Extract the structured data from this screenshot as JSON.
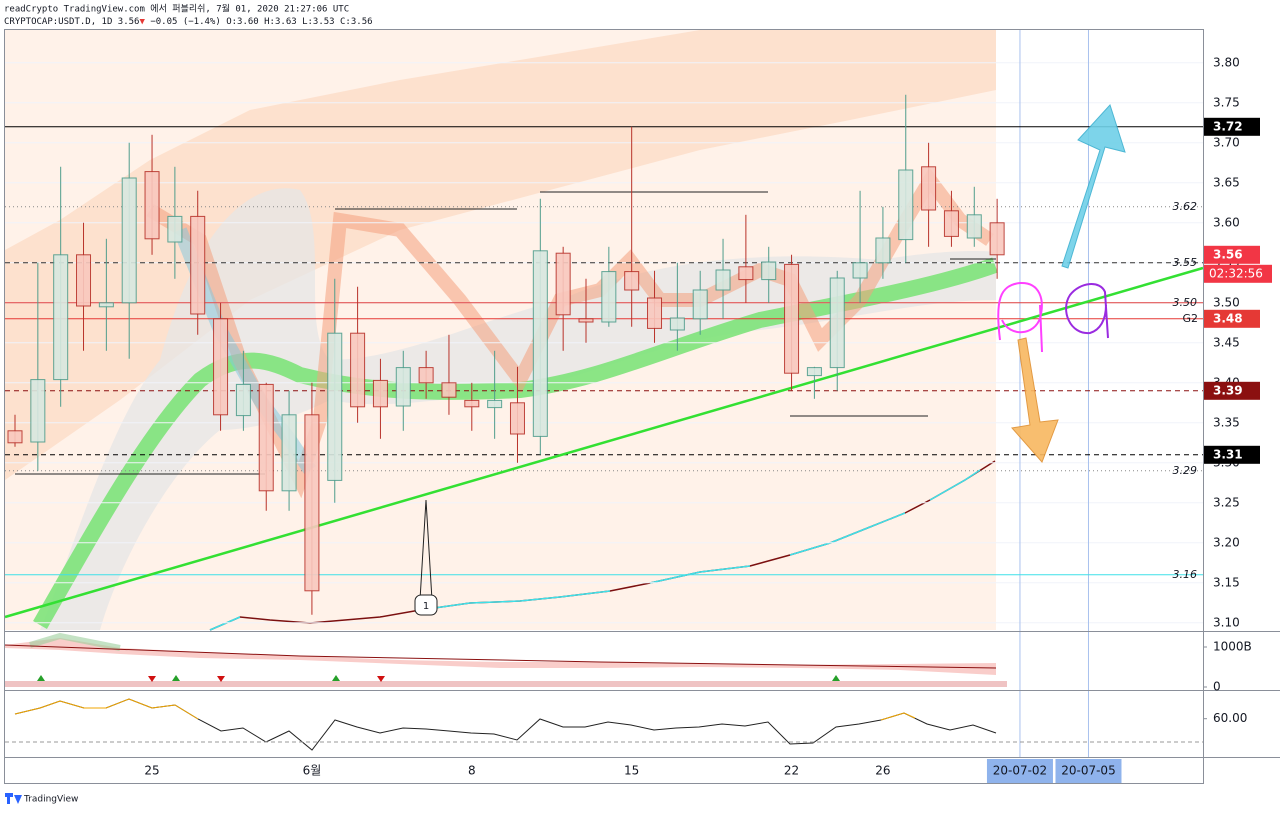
{
  "header": {
    "attribution": "readCrypto TradingView.com 에서 퍼블리쉬, 7월 01, 2020 21:27:06 UTC",
    "symbol": "CRYPTOCAP:USDT.D, 1D",
    "last": "3.56",
    "arrow": "▼",
    "change": "−0.05 (−1.4%)",
    "o": "O:3.60",
    "h": "H:3.63",
    "l": "L:3.53",
    "c": "C:3.56"
  },
  "chart_data": {
    "type": "candlestick",
    "categories": [
      null,
      null,
      null,
      null,
      null,
      null,
      "25",
      null,
      null,
      null,
      null,
      null,
      null,
      "6월",
      null,
      null,
      null,
      null,
      null,
      null,
      "8",
      null,
      null,
      null,
      null,
      null,
      null,
      "15",
      null,
      null,
      null,
      null,
      null,
      null,
      "22",
      null,
      null,
      null,
      "26",
      null,
      null,
      null,
      null,
      null,
      "20-07-02",
      null,
      null,
      "20-07-05"
    ],
    "highlight_indices": [
      44,
      47
    ],
    "open": [
      3.34,
      3.326,
      3.404,
      3.56,
      3.495,
      3.5,
      3.664,
      3.576,
      3.608,
      3.48,
      3.359,
      3.398,
      3.265,
      3.36,
      3.278,
      3.462,
      3.403,
      3.371,
      3.419,
      3.4,
      3.378,
      3.369,
      3.375,
      3.333,
      3.562,
      3.48,
      3.476,
      3.539,
      3.506,
      3.466,
      3.48,
      3.516,
      3.545,
      3.529,
      3.548,
      3.409,
      3.419,
      3.531,
      3.55,
      3.579,
      3.67,
      3.615,
      3.581,
      3.6,
      null,
      null,
      null,
      null
    ],
    "high": [
      3.36,
      3.55,
      3.67,
      3.6,
      3.58,
      3.7,
      3.71,
      3.67,
      3.64,
      3.5,
      3.44,
      3.4,
      3.39,
      3.4,
      3.53,
      3.52,
      3.43,
      3.44,
      3.44,
      3.46,
      3.4,
      3.44,
      3.42,
      3.63,
      3.57,
      3.53,
      3.57,
      3.72,
      3.54,
      3.55,
      3.54,
      3.58,
      3.61,
      3.57,
      3.56,
      3.42,
      3.54,
      3.64,
      3.62,
      3.76,
      3.7,
      3.64,
      3.645,
      3.63,
      null,
      null,
      null,
      null
    ],
    "low": [
      3.32,
      3.29,
      3.37,
      3.44,
      3.44,
      3.43,
      3.56,
      3.53,
      3.46,
      3.34,
      3.34,
      3.24,
      3.24,
      3.11,
      3.25,
      3.35,
      3.33,
      3.34,
      3.38,
      3.36,
      3.34,
      3.33,
      3.3,
      3.31,
      3.44,
      3.45,
      3.47,
      3.47,
      3.45,
      3.44,
      3.46,
      3.48,
      3.5,
      3.5,
      3.39,
      3.38,
      3.39,
      3.5,
      3.53,
      3.55,
      3.57,
      3.57,
      3.57,
      3.53,
      null,
      null,
      null,
      null
    ],
    "close": [
      3.325,
      3.404,
      3.56,
      3.496,
      3.5,
      3.656,
      3.58,
      3.608,
      3.486,
      3.36,
      3.398,
      3.265,
      3.36,
      3.14,
      3.462,
      3.37,
      3.37,
      3.419,
      3.4,
      3.382,
      3.37,
      3.378,
      3.336,
      3.565,
      3.485,
      3.476,
      3.539,
      3.516,
      3.468,
      3.481,
      3.516,
      3.541,
      3.529,
      3.551,
      3.412,
      3.419,
      3.531,
      3.55,
      3.581,
      3.666,
      3.616,
      3.583,
      3.61,
      3.56,
      null,
      null,
      null,
      null
    ],
    "up_color": "#4f9d8c",
    "down_color": "#b8322a",
    "ylim": [
      3.091,
      3.841
    ],
    "yticks": [
      {
        "value": 3.1,
        "label": "3.10"
      },
      3.15,
      {
        "value": 3.2,
        "label": "3.20"
      },
      3.25,
      {
        "value": 3.3,
        "label": "3.30"
      },
      3.35,
      {
        "value": 3.4,
        "label": "3.40"
      },
      3.45,
      {
        "value": 3.5,
        "label": "3.50"
      },
      3.55,
      {
        "value": 3.6,
        "label": "3.60"
      },
      3.65,
      {
        "value": 3.7,
        "label": "3.70"
      },
      3.75,
      {
        "value": 3.8,
        "label": "3.80"
      }
    ],
    "grid": true,
    "levels": [
      {
        "value": 3.72,
        "color": "#000000",
        "dash": "solid",
        "tag": "box"
      },
      {
        "value": 3.62,
        "color": "#888888",
        "dash": "dotted",
        "tag": "italic"
      },
      {
        "value": 3.56,
        "color": "#f23645",
        "dash": "none",
        "tag": "box"
      },
      {
        "value": 3.55,
        "color": "#333333",
        "dash": "dashed",
        "tag": "italic"
      },
      {
        "value": 3.5,
        "label": "3.50",
        "color": "#e04040",
        "dash": "solid",
        "tag": "italic"
      },
      {
        "value": 3.48,
        "color": "#e53935",
        "dash": "solid",
        "tag": "box"
      },
      {
        "value": 3.39,
        "color": "#8b1010",
        "dash": "dashed",
        "tag": "box"
      },
      {
        "value": 3.31,
        "color": "#000000",
        "dash": "dashed",
        "tag": "box"
      },
      {
        "value": 3.29,
        "color": "#888888",
        "dash": "dotted",
        "tag": "italic"
      },
      {
        "value": 3.16,
        "color": "#3ee0e8",
        "dash": "solid",
        "tag": "italic"
      }
    ],
    "countdown": "02:32:56",
    "level_note": "G2",
    "annotation": "1",
    "volume_pane": {
      "ylim": [
        -75000000000,
        1375000000000
      ],
      "yticks": [
        {
          "value": 1000000000000,
          "label": "1000B"
        },
        0
      ]
    },
    "oscillator_pane": {
      "ylim": [
        27,
        83
      ],
      "yticks": [
        {
          "value": 60,
          "label": "60.00"
        }
      ]
    }
  },
  "footer": {
    "brand": "TradingView"
  }
}
